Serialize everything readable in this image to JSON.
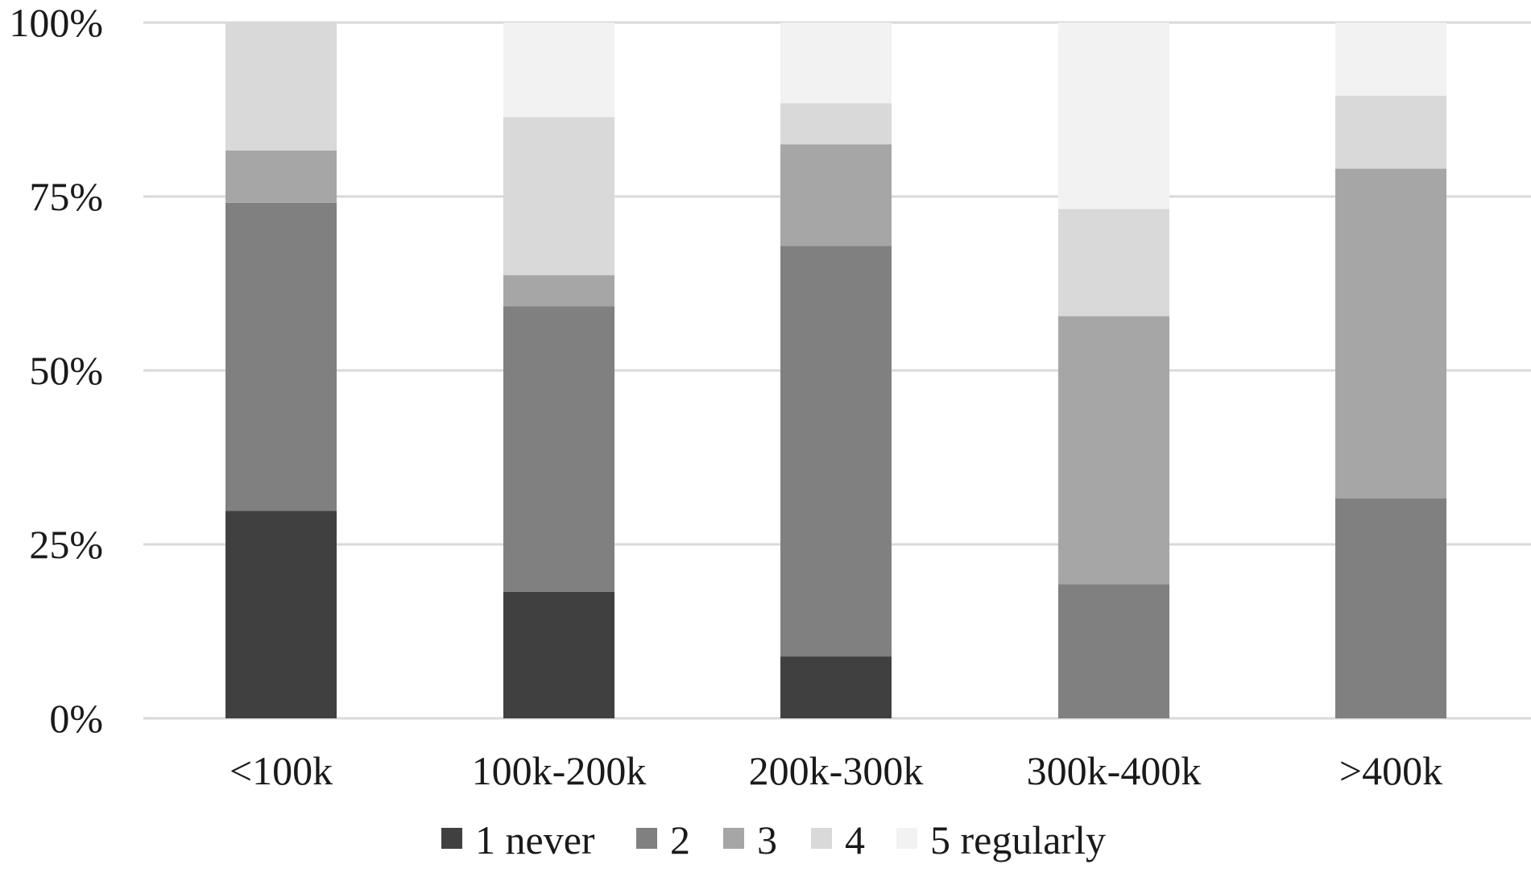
{
  "chart_data": {
    "type": "bar",
    "stacked": true,
    "percent_stacked": true,
    "title": "",
    "xlabel": "",
    "ylabel": "",
    "ylim": [
      0,
      100
    ],
    "yticks": [
      0,
      25,
      50,
      75,
      100
    ],
    "ytick_labels": [
      "0%",
      "25%",
      "50%",
      "75%",
      "100%"
    ],
    "grid": true,
    "legend_position": "bottom",
    "categories": [
      "<100k",
      "100k-200k",
      "200k-300k",
      "300k-400k",
      ">400k"
    ],
    "series": [
      {
        "name": "1 never",
        "color": "#404040",
        "values": [
          29.8,
          18.2,
          8.9,
          0.0,
          0.0
        ]
      },
      {
        "name": "2",
        "color": "#808080",
        "values": [
          44.3,
          41.0,
          59.0,
          19.3,
          31.6
        ]
      },
      {
        "name": "3",
        "color": "#a6a6a6",
        "values": [
          7.5,
          4.5,
          14.6,
          38.5,
          47.4
        ]
      },
      {
        "name": "4",
        "color": "#d9d9d9",
        "values": [
          18.4,
          22.7,
          5.9,
          15.4,
          10.5
        ]
      },
      {
        "name": "5 regularly",
        "color": "#f2f2f2",
        "values": [
          0.0,
          13.6,
          11.6,
          26.8,
          10.5
        ]
      }
    ]
  }
}
